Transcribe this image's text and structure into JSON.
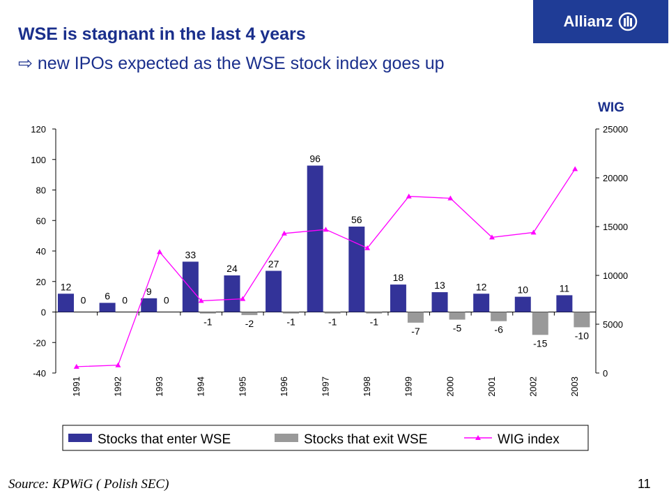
{
  "header": {
    "title": "WSE is stagnant in the last 4 years",
    "subtitle_arrow": "⇨",
    "subtitle": " new IPOs expected as the WSE stock index goes up"
  },
  "logo": {
    "text": "Allianz"
  },
  "right_axis_title": "WIG",
  "footer": {
    "source": "Source: KPWiG ( Polish SEC)",
    "page": "11"
  },
  "colors": {
    "enter": "#333399",
    "exit": "#999999",
    "wig": "#ff00ff",
    "title": "#1a2f8c",
    "logo_bg": "#1f3c96"
  },
  "chart_data": {
    "type": "bar",
    "categories": [
      "1991",
      "1992",
      "1993",
      "1994",
      "1995",
      "1996",
      "1997",
      "1998",
      "1999",
      "2000",
      "2001",
      "2002",
      "2003"
    ],
    "series": [
      {
        "name": "Stocks that enter WSE",
        "type": "bar",
        "axis": "left",
        "values": [
          12,
          6,
          9,
          33,
          24,
          27,
          96,
          56,
          18,
          13,
          12,
          10,
          11
        ]
      },
      {
        "name": "Stocks that exit WSE",
        "type": "bar",
        "axis": "left",
        "values": [
          0,
          0,
          0,
          -1,
          -2,
          -1,
          -1,
          -1,
          -7,
          -5,
          -6,
          -15,
          -10
        ]
      },
      {
        "name": "WIG index",
        "type": "line",
        "axis": "right",
        "values": [
          650,
          800,
          12400,
          7400,
          7600,
          14300,
          14700,
          12800,
          18100,
          17900,
          13900,
          14400,
          20900
        ]
      }
    ],
    "left_axis": {
      "ylim": [
        -40,
        120
      ],
      "ticks": [
        -40,
        -20,
        0,
        20,
        40,
        60,
        80,
        100,
        120
      ]
    },
    "right_axis": {
      "title": "WIG",
      "ylim": [
        0,
        25000
      ],
      "ticks": [
        0,
        5000,
        10000,
        15000,
        20000,
        25000
      ]
    },
    "legend_position": "bottom"
  }
}
